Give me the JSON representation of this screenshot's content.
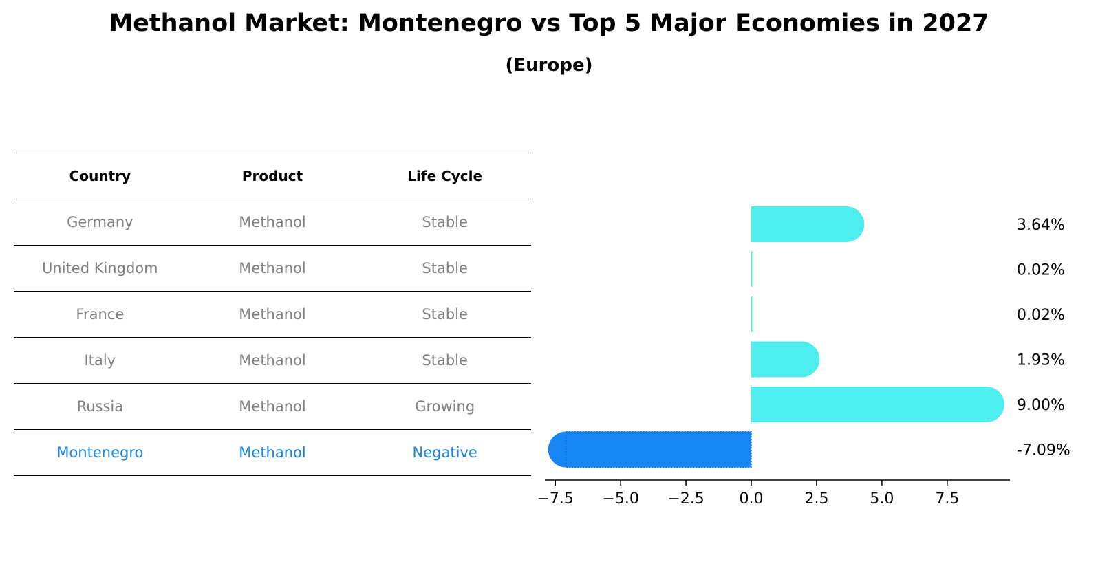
{
  "title": "Methanol Market: Montenegro vs Top 5 Major Economies in 2027",
  "subtitle": "(Europe)",
  "table": {
    "headers": [
      "Country",
      "Product",
      "Life Cycle"
    ],
    "rows": [
      [
        "Germany",
        "Methanol",
        "Stable"
      ],
      [
        "United Kingdom",
        "Methanol",
        "Stable"
      ],
      [
        "France",
        "Methanol",
        "Stable"
      ],
      [
        "Italy",
        "Methanol",
        "Stable"
      ],
      [
        "Russia",
        "Methanol",
        "Growing"
      ],
      [
        "Montenegro",
        "Methanol",
        "Negative"
      ]
    ],
    "highlight_row": 5,
    "highlight_color": "#1a85e0",
    "text_color": "#808080"
  },
  "chart_data": {
    "type": "bar",
    "orientation": "horizontal",
    "categories": [
      "Germany",
      "United Kingdom",
      "France",
      "Italy",
      "Russia",
      "Montenegro"
    ],
    "values": [
      3.64,
      0.02,
      0.02,
      1.93,
      9.0,
      -7.09
    ],
    "value_labels": [
      "3.64%",
      "0.02%",
      "0.02%",
      "1.93%",
      "9.00%",
      "-7.09%"
    ],
    "colors": [
      "#4deded",
      "#4deded",
      "#4deded",
      "#4deded",
      "#4deded",
      "#1a85f5"
    ],
    "xlim": [
      -7.9,
      9.9
    ],
    "xticks": [
      -7.5,
      -5.0,
      -2.5,
      0.0,
      2.5,
      5.0,
      7.5
    ],
    "xtick_labels": [
      "−7.5",
      "−5.0",
      "−2.5",
      "0.0",
      "2.5",
      "5.0",
      "7.5"
    ],
    "grid": false,
    "legend": false
  }
}
